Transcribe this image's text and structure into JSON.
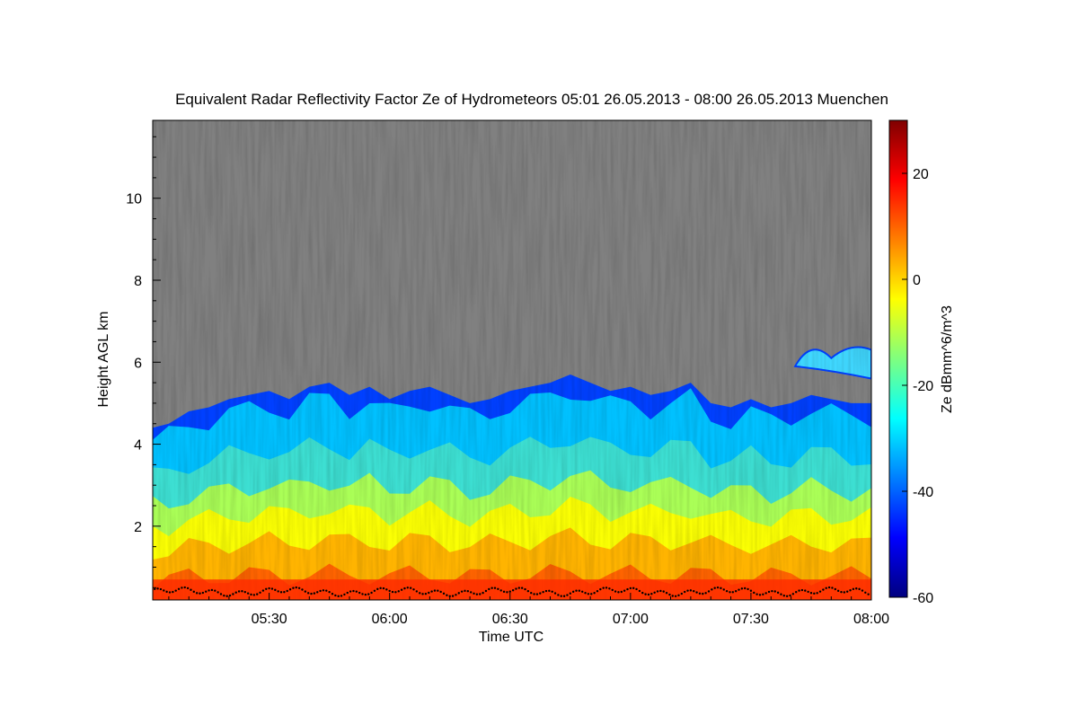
{
  "chart_data": {
    "type": "heatmap",
    "title": "Equivalent Radar Reflectivity Factor Ze of Hydrometeors   05:01 26.05.2013 - 08:00 26.05.2013 Muenchen",
    "xlabel": "Time UTC",
    "ylabel": "Height AGL km",
    "colorbar_label": "Ze dBmm^6/m^3",
    "x_unit": "time UTC (minutes after midnight)",
    "xlim": [
      301,
      480
    ],
    "ylim": [
      0.2,
      11.9
    ],
    "x_ticks": [
      {
        "value": 330,
        "label": "05:30"
      },
      {
        "value": 360,
        "label": "06:00"
      },
      {
        "value": 390,
        "label": "06:30"
      },
      {
        "value": 420,
        "label": "07:00"
      },
      {
        "value": 450,
        "label": "07:30"
      },
      {
        "value": 480,
        "label": "08:00"
      }
    ],
    "y_ticks": [
      {
        "value": 2,
        "label": "2"
      },
      {
        "value": 4,
        "label": "4"
      },
      {
        "value": 6,
        "label": "6"
      },
      {
        "value": 8,
        "label": "8"
      },
      {
        "value": 10,
        "label": "10"
      }
    ],
    "colorbar_range": [
      -60,
      30
    ],
    "colorbar_ticks": [
      {
        "value": 20,
        "label": "20"
      },
      {
        "value": 0,
        "label": "0"
      },
      {
        "value": -20,
        "label": "-20"
      },
      {
        "value": -40,
        "label": "-40"
      },
      {
        "value": -60,
        "label": "-60"
      }
    ],
    "colormap": [
      "#00007f",
      "#0000ff",
      "#007fff",
      "#00ffff",
      "#7fff7f",
      "#ffff00",
      "#ff7f00",
      "#ff0000",
      "#7f0000"
    ],
    "background_color": "#808080",
    "cloud_top_km": {
      "t": [
        301,
        305,
        310,
        315,
        320,
        325,
        330,
        335,
        340,
        345,
        350,
        355,
        360,
        365,
        370,
        375,
        380,
        385,
        390,
        395,
        400,
        405,
        410,
        415,
        420,
        425,
        430,
        435,
        440,
        445,
        450,
        455,
        460,
        465,
        470,
        475,
        480
      ],
      "h": [
        4.4,
        4.5,
        4.8,
        4.9,
        5.1,
        5.2,
        5.3,
        5.1,
        5.4,
        5.5,
        5.2,
        5.4,
        5.1,
        5.3,
        5.4,
        5.2,
        5.0,
        5.1,
        5.3,
        5.4,
        5.5,
        5.7,
        5.5,
        5.3,
        5.4,
        5.2,
        5.3,
        5.5,
        5.0,
        4.9,
        5.1,
        4.9,
        5.0,
        5.2,
        5.1,
        5.0,
        5.0
      ]
    },
    "upper_cloud": {
      "t_range": [
        461,
        480
      ],
      "h_range": [
        5.6,
        6.6
      ]
    },
    "cloud_base_km": 0.4,
    "grid": false,
    "legend": "colorbar right"
  }
}
